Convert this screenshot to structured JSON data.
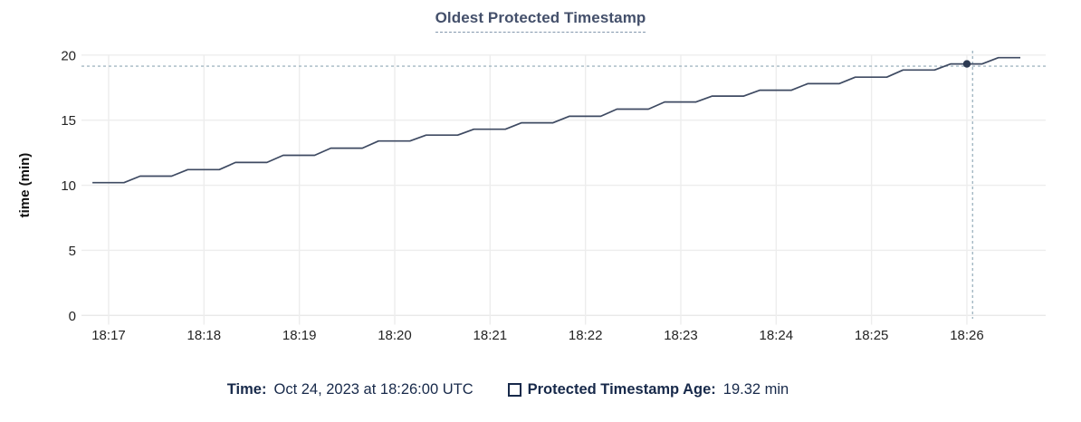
{
  "chart_data": {
    "type": "line",
    "title": "Oldest Protected Timestamp",
    "xlabel": "",
    "ylabel": "time (min)",
    "ylim": [
      0,
      20
    ],
    "y_ticks": [
      0,
      5,
      10,
      15,
      20
    ],
    "x_ticks": [
      {
        "t": 0,
        "label": "18:17"
      },
      {
        "t": 1,
        "label": "18:18"
      },
      {
        "t": 2,
        "label": "18:19"
      },
      {
        "t": 3,
        "label": "18:20"
      },
      {
        "t": 4,
        "label": "18:21"
      },
      {
        "t": 5,
        "label": "18:22"
      },
      {
        "t": 6,
        "label": "18:23"
      },
      {
        "t": 7,
        "label": "18:24"
      },
      {
        "t": 8,
        "label": "18:25"
      },
      {
        "t": 9,
        "label": "18:26"
      }
    ],
    "x_unit": "clock time (UTC), minutes relative to 18:17",
    "grid": true,
    "legend_position": "bottom",
    "series": [
      {
        "name": "Protected Timestamp Age",
        "points": [
          [
            -0.17,
            10.2
          ],
          [
            0.16,
            10.2
          ],
          [
            0.33,
            10.7
          ],
          [
            0.66,
            10.7
          ],
          [
            0.83,
            11.2
          ],
          [
            1.16,
            11.2
          ],
          [
            1.33,
            11.75
          ],
          [
            1.66,
            11.75
          ],
          [
            1.83,
            12.3
          ],
          [
            2.16,
            12.3
          ],
          [
            2.33,
            12.85
          ],
          [
            2.66,
            12.85
          ],
          [
            2.83,
            13.4
          ],
          [
            3.16,
            13.4
          ],
          [
            3.33,
            13.85
          ],
          [
            3.66,
            13.85
          ],
          [
            3.83,
            14.3
          ],
          [
            4.16,
            14.3
          ],
          [
            4.33,
            14.8
          ],
          [
            4.66,
            14.8
          ],
          [
            4.83,
            15.3
          ],
          [
            5.16,
            15.3
          ],
          [
            5.33,
            15.85
          ],
          [
            5.66,
            15.85
          ],
          [
            5.83,
            16.4
          ],
          [
            6.16,
            16.4
          ],
          [
            6.33,
            16.85
          ],
          [
            6.66,
            16.85
          ],
          [
            6.83,
            17.3
          ],
          [
            7.16,
            17.3
          ],
          [
            7.33,
            17.8
          ],
          [
            7.66,
            17.8
          ],
          [
            7.83,
            18.3
          ],
          [
            8.16,
            18.3
          ],
          [
            8.33,
            18.85
          ],
          [
            8.66,
            18.85
          ],
          [
            8.83,
            19.32
          ],
          [
            9.16,
            19.32
          ],
          [
            9.33,
            19.8
          ],
          [
            9.56,
            19.8
          ]
        ]
      }
    ],
    "highlight_point": {
      "t": 9.0,
      "v": 19.32,
      "time": "18:26:00",
      "value_label": "19.32 min"
    },
    "crosshair": {
      "t": 9.06,
      "v": 19.15
    }
  },
  "tooltip": {
    "time_label": "Time:",
    "time_value": "Oct 24, 2023 at 18:26:00 UTC",
    "series_label": "Protected Timestamp Age:",
    "series_value": "19.32 min"
  },
  "colors": {
    "line": "#3e4a62",
    "dot": "#2c3a52",
    "grid": "#ededed",
    "axis_line": "#e9e9e9",
    "crosshair_dash": "#a3b8c4",
    "title_text": "#44506b",
    "legend_text": "#17294a"
  }
}
